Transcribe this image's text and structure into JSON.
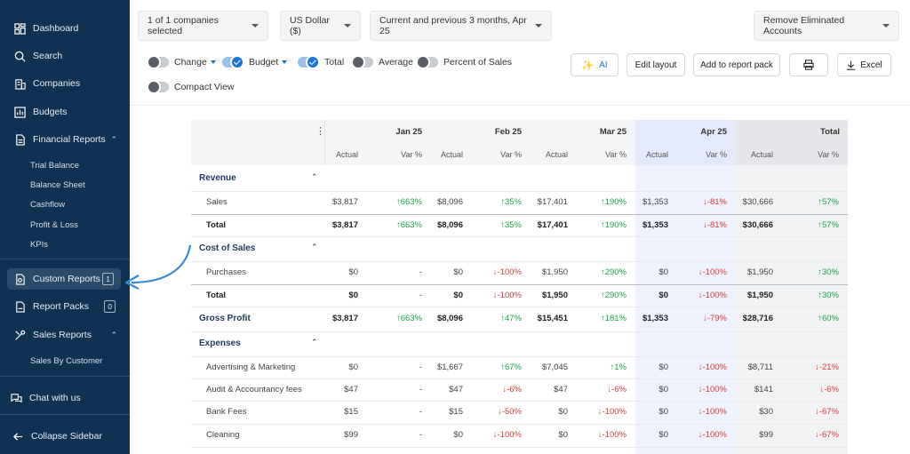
{
  "sidebar": {
    "items": [
      {
        "label": "Dashboard",
        "icon": "dashboard-icon"
      },
      {
        "label": "Search",
        "icon": "search-icon"
      },
      {
        "label": "Companies",
        "icon": "building-icon"
      },
      {
        "label": "Budgets",
        "icon": "chart-icon"
      },
      {
        "label": "Financial Reports",
        "icon": "report-icon"
      }
    ],
    "financial_sub": [
      "Trial Balance",
      "Balance Sheet",
      "Cashflow",
      "Profit & Loss",
      "KPIs"
    ],
    "custom_reports": {
      "label": "Custom Reports",
      "badge": "1"
    },
    "report_packs": {
      "label": "Report Packs",
      "badge": "0"
    },
    "sales_reports": {
      "label": "Sales Reports"
    },
    "sales_sub": [
      "Sales By Customer"
    ],
    "chat": "Chat with us",
    "collapse": "Collapse Sidebar"
  },
  "toolbar": {
    "companies": "1 of 1 companies selected",
    "currency": "US Dollar ($)",
    "period": "Current and previous 3 months, Apr 25",
    "eliminate": "Remove Eliminated Accounts",
    "toggles": {
      "change": "Change",
      "budget": "Budget",
      "total": "Total",
      "average": "Average",
      "percent": "Percent of Sales",
      "compact": "Compact View"
    },
    "ai": "AI",
    "edit_layout": "Edit layout",
    "add_pack": "Add to report pack",
    "excel": "Excel"
  },
  "table": {
    "months": [
      "Jan 25",
      "Feb 25",
      "Mar 25",
      "Apr 25",
      "Total"
    ],
    "sub_actual": "Actual",
    "sub_var": "Var %",
    "rows": [
      {
        "label": "Revenue",
        "type": "section"
      },
      {
        "label": "Sales",
        "type": "child",
        "cells": [
          "$3,817",
          "↑663%",
          "$8,096",
          "↑35%",
          "$17,401",
          "↑190%",
          "$1,353",
          "↓-81%",
          "$30,666",
          "↑57%"
        ]
      },
      {
        "label": "Total",
        "type": "total",
        "cells": [
          "$3,817",
          "↑663%",
          "$8,096",
          "↑35%",
          "$17,401",
          "↑190%",
          "$1,353",
          "↓-81%",
          "$30,666",
          "↑57%"
        ]
      },
      {
        "label": "Cost of Sales",
        "type": "section"
      },
      {
        "label": "Purchases",
        "type": "child",
        "cells": [
          "$0",
          "-",
          "$0",
          "↓-100%",
          "$1,950",
          "↑290%",
          "$0",
          "↓-100%",
          "$1,950",
          "↑30%"
        ]
      },
      {
        "label": "Total",
        "type": "total",
        "cells": [
          "$0",
          "-",
          "$0",
          "↓-100%",
          "$1,950",
          "↑290%",
          "$0",
          "↓-100%",
          "$1,950",
          "↑30%"
        ]
      },
      {
        "label": "Gross Profit",
        "type": "gp",
        "cells": [
          "$3,817",
          "↑663%",
          "$8,096",
          "↑47%",
          "$15,451",
          "↑181%",
          "$1,353",
          "↓-79%",
          "$28,716",
          "↑60%"
        ]
      },
      {
        "label": "Expenses",
        "type": "section"
      },
      {
        "label": "Advertising & Marketing",
        "type": "child",
        "cells": [
          "$0",
          "-",
          "$1,667",
          "↑67%",
          "$7,045",
          "↑1%",
          "$0",
          "↓-100%",
          "$8,711",
          "↓-21%"
        ]
      },
      {
        "label": "Audit & Accountancy fees",
        "type": "child",
        "cells": [
          "$47",
          "-",
          "$47",
          "↓-6%",
          "$47",
          "↓-6%",
          "$0",
          "↓-100%",
          "$141",
          "↓-6%"
        ]
      },
      {
        "label": "Bank Fees",
        "type": "child",
        "cells": [
          "$15",
          "-",
          "$15",
          "↓-50%",
          "$0",
          "↓-100%",
          "$0",
          "↓-100%",
          "$30",
          "↓-67%"
        ]
      },
      {
        "label": "Cleaning",
        "type": "child",
        "cells": [
          "$99",
          "-",
          "$0",
          "↓-100%",
          "$0",
          "↓-100%",
          "$0",
          "↓-100%",
          "$99",
          "↓-67%"
        ]
      }
    ]
  },
  "colors": {
    "sidebar": "#0f3152",
    "up": "#1fa34a",
    "down": "#d63c3c",
    "accent": "#1c73d8",
    "arrow": "#3b8ad8"
  }
}
